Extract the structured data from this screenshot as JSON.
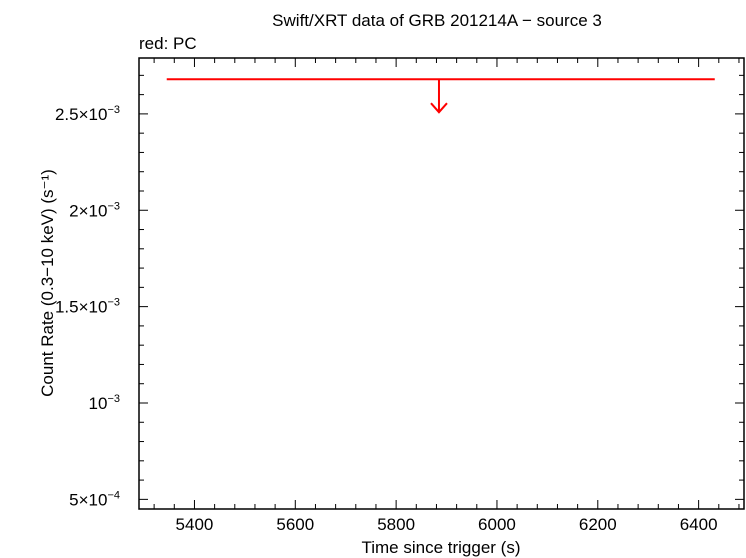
{
  "chart_data": {
    "type": "scatter",
    "title": "Swift/XRT data of GRB 201214A − source 3",
    "subtitle": "red: PC",
    "xlabel": "Time since trigger (s)",
    "ylabel": "Count Rate (0.3−10 keV) (s⁻¹)",
    "xlim": [
      5290,
      6490
    ],
    "ylim": [
      0.00045,
      0.00279
    ],
    "x_ticks": [
      5400,
      5600,
      5800,
      6000,
      6200,
      6400
    ],
    "x_tick_labels": [
      "5400",
      "5600",
      "5800",
      "6000",
      "6200",
      "6400"
    ],
    "y_ticks": [
      0.0005,
      0.001,
      0.0015,
      0.002,
      0.0025
    ],
    "y_tick_labels": [
      {
        "mant": "5×10",
        "exp": "−4"
      },
      {
        "mant": "",
        "exp": ""
      },
      {
        "mant": "1.5×10",
        "exp": "−3"
      },
      {
        "mant": "2×10",
        "exp": "−3"
      },
      {
        "mant": "2.5×10",
        "exp": "−3"
      }
    ],
    "y_label_10": {
      "mant": "10",
      "exp": "−3"
    },
    "series": [
      {
        "color": "#ff0000",
        "upper_limit": true,
        "points": [
          {
            "x": 5885,
            "x_lo": 5345,
            "x_hi": 6432,
            "y": 0.00268
          }
        ]
      }
    ]
  }
}
